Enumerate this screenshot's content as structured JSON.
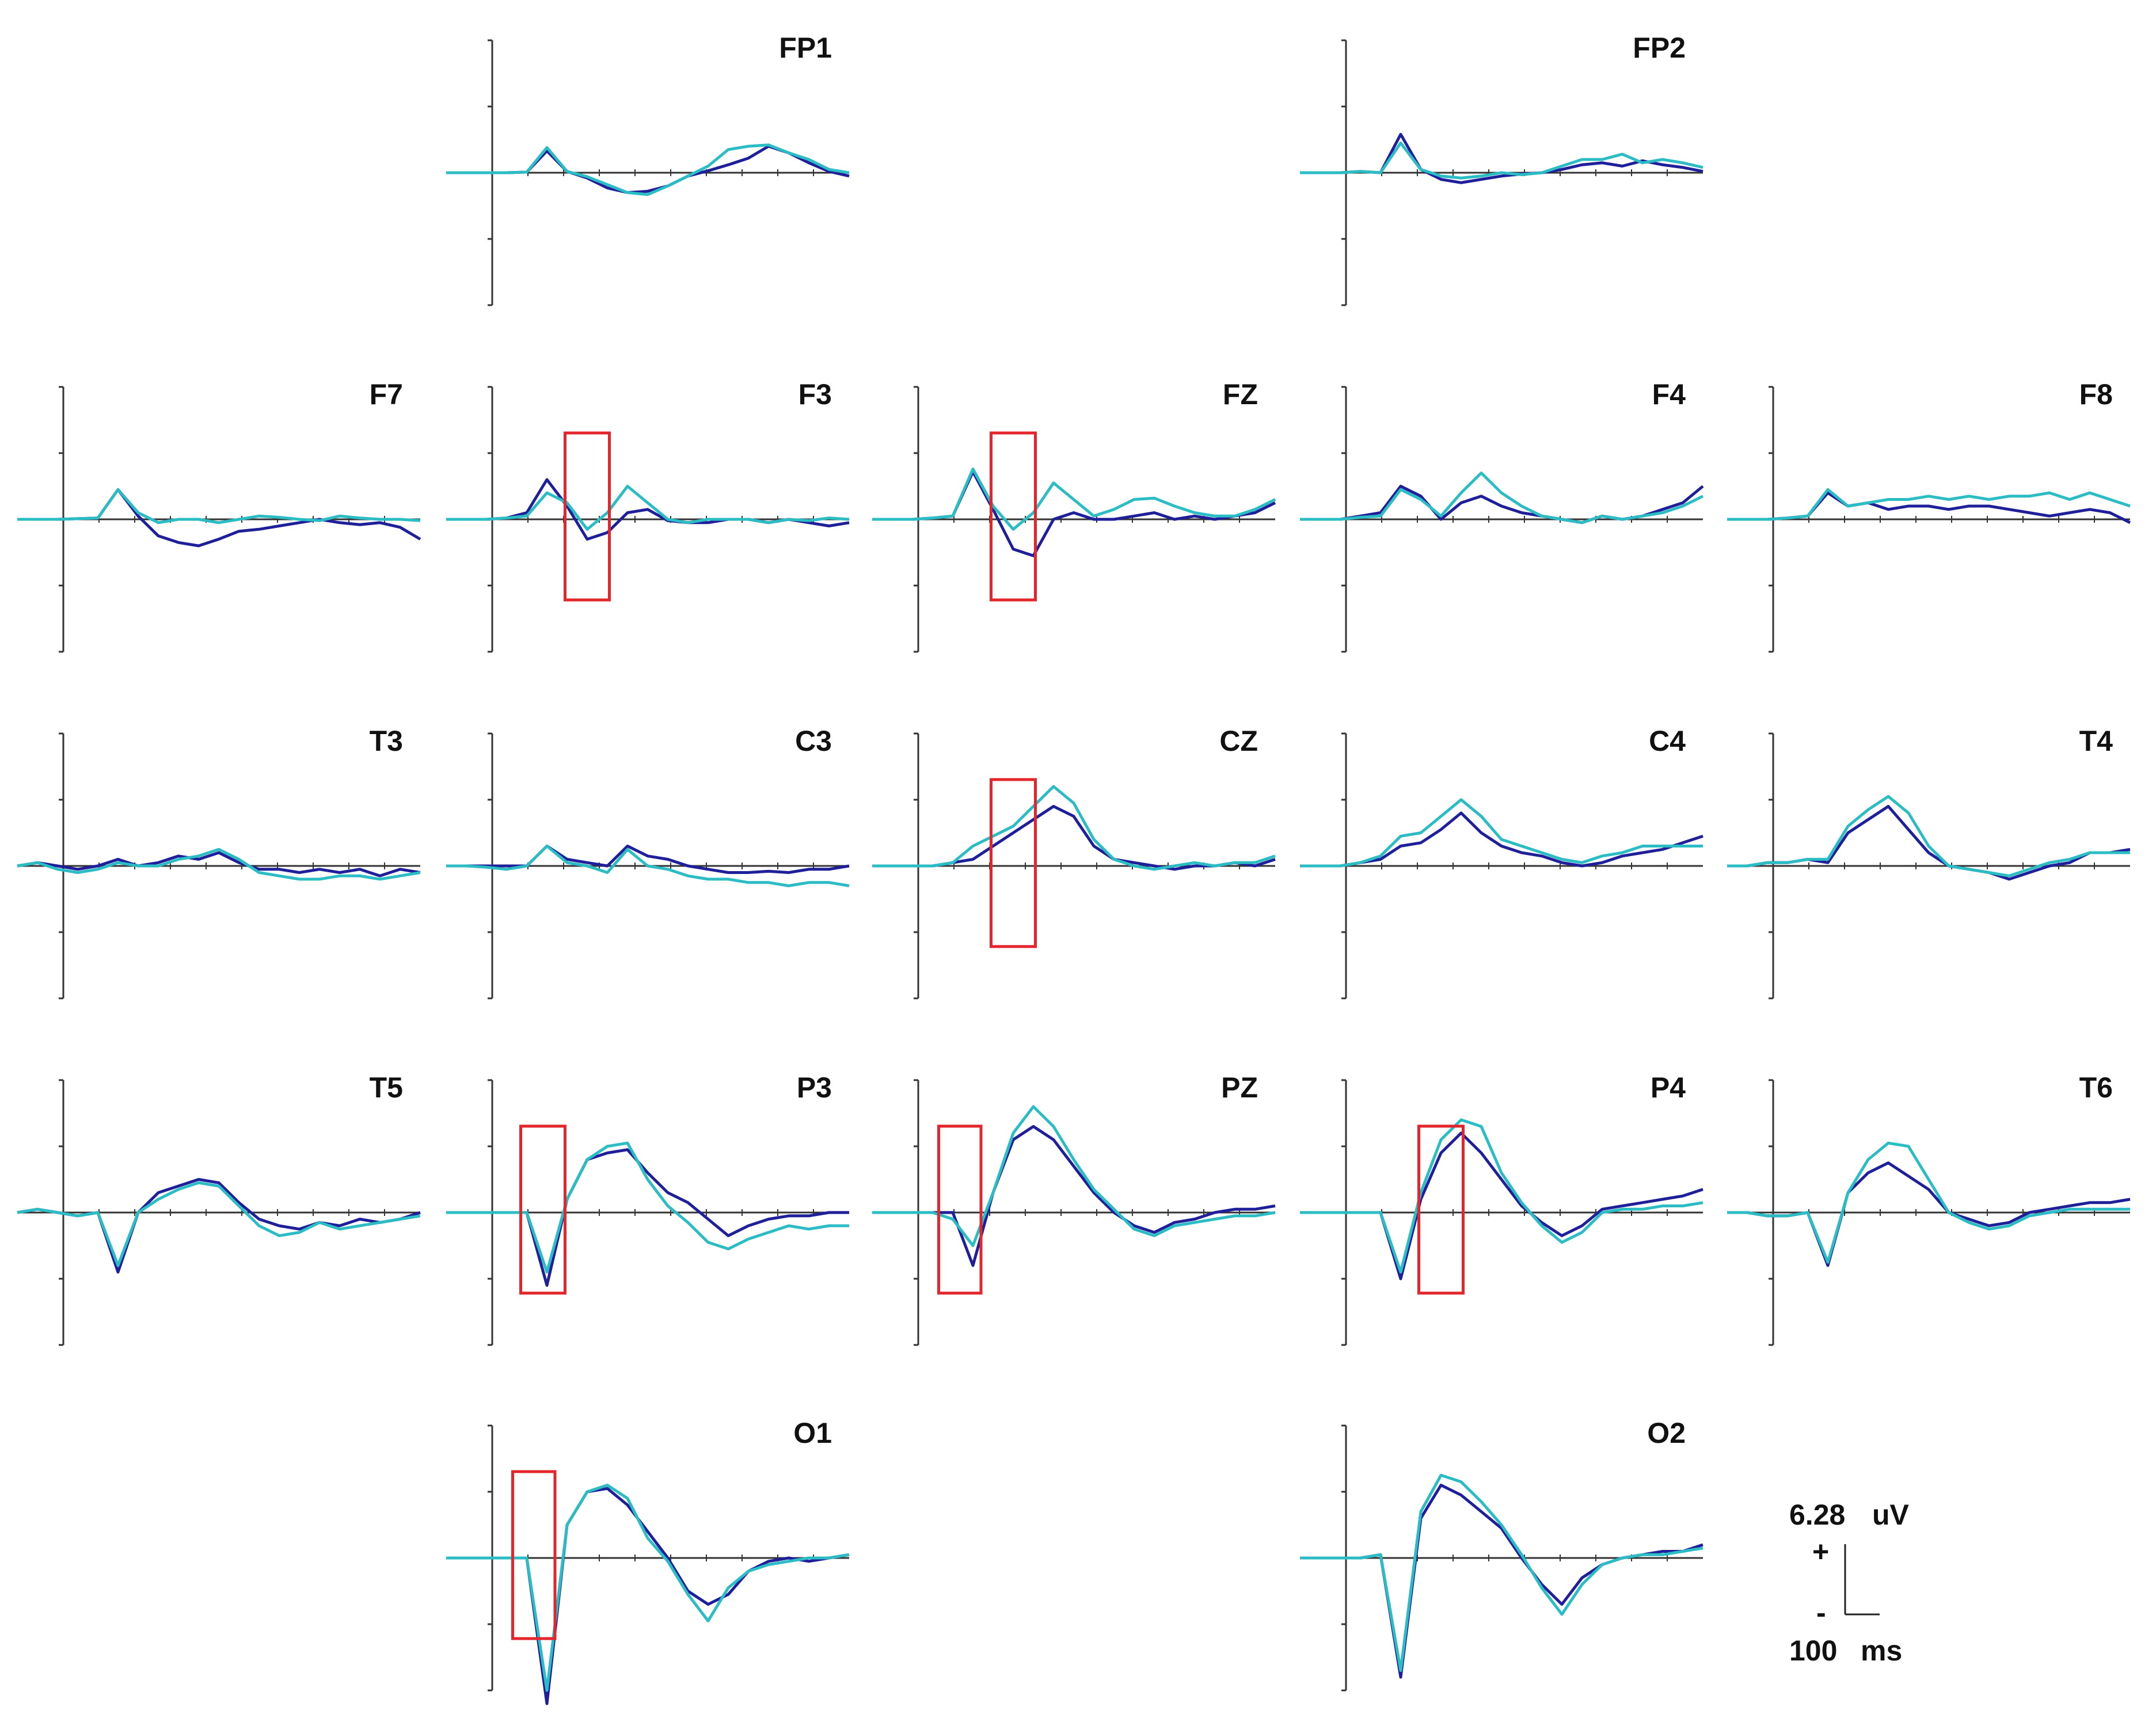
{
  "chart_data": {
    "type": "line",
    "axes": {
      "ticks_y_visible": true,
      "grid": false
    },
    "colors": {
      "series_a": "#1f1f9a",
      "series_b": "#2bbcc4",
      "highlight": "#e3262b"
    },
    "scale_bar": {
      "amplitude": "6.28",
      "amplitude_unit": "uV",
      "time": "100",
      "time_unit": "ms",
      "plus_label": "+",
      "minus_label": "-"
    },
    "channels": [
      {
        "name": "FP1",
        "a": [
          0,
          0,
          0,
          0,
          0.01,
          0.33,
          0.02,
          -0.08,
          -0.23,
          -0.3,
          -0.28,
          -0.2,
          -0.05,
          0.03,
          0.12,
          0.22,
          0.4,
          0.3,
          0.15,
          0.02,
          -0.05
        ],
        "b": [
          0,
          0,
          0,
          0,
          0.01,
          0.38,
          0.02,
          -0.06,
          -0.18,
          -0.3,
          -0.33,
          -0.2,
          -0.05,
          0.1,
          0.35,
          0.4,
          0.42,
          0.3,
          0.2,
          0.05,
          0
        ]
      },
      {
        "name": "FP2",
        "a": [
          0,
          0,
          0,
          0.02,
          0.0,
          0.58,
          0.05,
          -0.1,
          -0.15,
          -0.1,
          -0.05,
          -0.02,
          0.0,
          0.05,
          0.12,
          0.15,
          0.1,
          0.18,
          0.12,
          0.08,
          0.02
        ],
        "b": [
          0,
          0,
          0,
          0.02,
          0.0,
          0.45,
          0.05,
          -0.05,
          -0.08,
          -0.05,
          0.0,
          -0.03,
          0.0,
          0.1,
          0.2,
          0.2,
          0.28,
          0.15,
          0.2,
          0.15,
          0.08
        ]
      },
      {
        "name": "F7",
        "a": [
          0,
          0,
          0,
          0.01,
          0.02,
          0.45,
          0.05,
          -0.25,
          -0.35,
          -0.4,
          -0.3,
          -0.18,
          -0.15,
          -0.1,
          -0.05,
          0.0,
          -0.05,
          -0.08,
          -0.05,
          -0.12,
          -0.3
        ],
        "b": [
          0,
          0,
          0,
          0.01,
          0.02,
          0.45,
          0.1,
          -0.05,
          0.0,
          0.0,
          -0.05,
          0.0,
          0.05,
          0.03,
          0.0,
          -0.02,
          0.05,
          0.02,
          0.0,
          0.0,
          -0.02
        ]
      },
      {
        "name": "F3",
        "a": [
          0,
          0,
          0,
          0.02,
          0.1,
          0.6,
          0.2,
          -0.3,
          -0.2,
          0.1,
          0.15,
          -0.02,
          -0.05,
          -0.05,
          0.0,
          0.0,
          -0.05,
          0.0,
          -0.05,
          -0.1,
          -0.05
        ],
        "b": [
          0,
          0,
          0,
          0.02,
          0.05,
          0.4,
          0.25,
          -0.15,
          0.1,
          0.5,
          0.25,
          0.0,
          -0.05,
          0.0,
          0.0,
          0.0,
          -0.05,
          0.0,
          -0.02,
          0.02,
          0.0
        ]
      },
      {
        "name": "FZ",
        "a": [
          0,
          0,
          0,
          0.02,
          0.05,
          0.72,
          0.15,
          -0.45,
          -0.55,
          0.0,
          0.1,
          0.0,
          0.0,
          0.05,
          0.1,
          0.0,
          0.05,
          0.0,
          0.05,
          0.1,
          0.25
        ],
        "b": [
          0,
          0,
          0,
          0.02,
          0.05,
          0.76,
          0.2,
          -0.15,
          0.1,
          0.55,
          0.3,
          0.05,
          0.15,
          0.3,
          0.32,
          0.2,
          0.1,
          0.05,
          0.05,
          0.15,
          0.3
        ]
      },
      {
        "name": "F4",
        "a": [
          0,
          0,
          0,
          0.05,
          0.1,
          0.5,
          0.35,
          0.0,
          0.25,
          0.35,
          0.2,
          0.1,
          0.05,
          0.0,
          -0.05,
          0.05,
          0.0,
          0.05,
          0.15,
          0.25,
          0.5
        ],
        "b": [
          0,
          0,
          0,
          0.03,
          0.05,
          0.45,
          0.3,
          0.05,
          0.4,
          0.7,
          0.4,
          0.2,
          0.05,
          0.0,
          -0.05,
          0.05,
          0.0,
          0.05,
          0.1,
          0.2,
          0.35
        ]
      },
      {
        "name": "F8",
        "a": [
          0,
          0,
          0,
          0.02,
          0.05,
          0.4,
          0.2,
          0.25,
          0.15,
          0.2,
          0.2,
          0.15,
          0.2,
          0.2,
          0.15,
          0.1,
          0.05,
          0.1,
          0.15,
          0.1,
          -0.05
        ],
        "b": [
          0,
          0,
          0,
          0.02,
          0.05,
          0.45,
          0.2,
          0.25,
          0.3,
          0.3,
          0.35,
          0.3,
          0.35,
          0.3,
          0.35,
          0.35,
          0.4,
          0.3,
          0.4,
          0.3,
          0.2
        ]
      },
      {
        "name": "T3",
        "a": [
          0,
          0.05,
          0.0,
          -0.05,
          0.0,
          0.1,
          0.0,
          0.05,
          0.15,
          0.1,
          0.2,
          0.05,
          -0.05,
          -0.05,
          -0.1,
          -0.05,
          -0.1,
          -0.05,
          -0.15,
          -0.05,
          -0.1
        ],
        "b": [
          0,
          0.05,
          -0.05,
          -0.1,
          -0.05,
          0.05,
          0.0,
          0.0,
          0.1,
          0.15,
          0.25,
          0.1,
          -0.1,
          -0.15,
          -0.2,
          -0.2,
          -0.15,
          -0.15,
          -0.2,
          -0.15,
          -0.1
        ]
      },
      {
        "name": "C3",
        "a": [
          0,
          0,
          0,
          0.0,
          0.0,
          0.3,
          0.1,
          0.05,
          0.0,
          0.3,
          0.15,
          0.1,
          0.0,
          -0.05,
          -0.1,
          -0.1,
          -0.08,
          -0.1,
          -0.05,
          -0.05,
          0.0
        ],
        "b": [
          0,
          0,
          -0.02,
          -0.05,
          0.0,
          0.3,
          0.05,
          0.0,
          -0.1,
          0.25,
          0.0,
          -0.05,
          -0.15,
          -0.2,
          -0.2,
          -0.25,
          -0.25,
          -0.3,
          -0.25,
          -0.25,
          -0.3
        ]
      },
      {
        "name": "CZ",
        "a": [
          0,
          0,
          0,
          0.0,
          0.05,
          0.1,
          0.3,
          0.5,
          0.7,
          0.9,
          0.75,
          0.3,
          0.1,
          0.05,
          0.0,
          -0.05,
          0.0,
          0.0,
          0.05,
          0.0,
          0.1
        ],
        "b": [
          0,
          0,
          0,
          0.0,
          0.05,
          0.3,
          0.45,
          0.6,
          0.9,
          1.2,
          0.95,
          0.4,
          0.1,
          0.0,
          -0.05,
          0.0,
          0.05,
          0.0,
          0.05,
          0.05,
          0.15
        ]
      },
      {
        "name": "C4",
        "a": [
          0,
          0,
          0,
          0.05,
          0.1,
          0.3,
          0.35,
          0.55,
          0.8,
          0.5,
          0.3,
          0.2,
          0.15,
          0.05,
          0.0,
          0.05,
          0.15,
          0.2,
          0.25,
          0.35,
          0.45
        ],
        "b": [
          0,
          0,
          0,
          0.05,
          0.15,
          0.45,
          0.5,
          0.75,
          1.0,
          0.75,
          0.4,
          0.3,
          0.2,
          0.1,
          0.05,
          0.15,
          0.2,
          0.3,
          0.3,
          0.3,
          0.3
        ]
      },
      {
        "name": "T4",
        "a": [
          0,
          0,
          0.05,
          0.05,
          0.1,
          0.05,
          0.5,
          0.7,
          0.9,
          0.55,
          0.2,
          0.0,
          -0.05,
          -0.1,
          -0.2,
          -0.1,
          0.0,
          0.05,
          0.2,
          0.2,
          0.25
        ],
        "b": [
          0,
          0,
          0.05,
          0.05,
          0.1,
          0.1,
          0.6,
          0.85,
          1.05,
          0.8,
          0.3,
          0.0,
          -0.05,
          -0.1,
          -0.15,
          -0.05,
          0.05,
          0.1,
          0.2,
          0.2,
          0.2
        ]
      },
      {
        "name": "T5",
        "a": [
          0,
          0.05,
          0.0,
          -0.05,
          0.0,
          -0.9,
          0.0,
          0.3,
          0.4,
          0.5,
          0.45,
          0.15,
          -0.1,
          -0.2,
          -0.25,
          -0.15,
          -0.2,
          -0.1,
          -0.15,
          -0.1,
          0.0
        ],
        "b": [
          0,
          0.05,
          0.0,
          -0.05,
          0.0,
          -0.8,
          0.0,
          0.2,
          0.35,
          0.45,
          0.4,
          0.1,
          -0.2,
          -0.35,
          -0.3,
          -0.15,
          -0.25,
          -0.2,
          -0.15,
          -0.1,
          -0.05
        ]
      },
      {
        "name": "P3",
        "a": [
          0,
          0,
          0,
          0.0,
          0.0,
          -1.1,
          0.2,
          0.8,
          0.9,
          0.95,
          0.6,
          0.3,
          0.15,
          -0.1,
          -0.35,
          -0.2,
          -0.1,
          -0.05,
          -0.05,
          0.0,
          0.0
        ],
        "b": [
          0,
          0,
          0,
          0.0,
          0.0,
          -0.9,
          0.2,
          0.8,
          1.0,
          1.05,
          0.5,
          0.1,
          -0.15,
          -0.45,
          -0.55,
          -0.4,
          -0.3,
          -0.2,
          -0.25,
          -0.2,
          -0.2
        ]
      },
      {
        "name": "PZ",
        "a": [
          0,
          0,
          0,
          0.0,
          0.0,
          -0.8,
          0.3,
          1.1,
          1.3,
          1.1,
          0.7,
          0.3,
          0.0,
          -0.2,
          -0.3,
          -0.15,
          -0.1,
          0.0,
          0.05,
          0.05,
          0.1
        ],
        "b": [
          0,
          0,
          0,
          0.0,
          -0.1,
          -0.5,
          0.3,
          1.2,
          1.6,
          1.3,
          0.8,
          0.35,
          0.05,
          -0.25,
          -0.35,
          -0.2,
          -0.15,
          -0.1,
          -0.05,
          -0.05,
          0.0
        ]
      },
      {
        "name": "P4",
        "a": [
          0,
          0,
          0,
          0.0,
          0.0,
          -1.0,
          0.2,
          0.9,
          1.2,
          0.9,
          0.5,
          0.1,
          -0.15,
          -0.35,
          -0.2,
          0.05,
          0.1,
          0.15,
          0.2,
          0.25,
          0.35
        ],
        "b": [
          0,
          0,
          0,
          0.0,
          0.0,
          -0.9,
          0.3,
          1.1,
          1.4,
          1.3,
          0.6,
          0.15,
          -0.2,
          -0.45,
          -0.3,
          0.0,
          0.05,
          0.05,
          0.1,
          0.1,
          0.15
        ]
      },
      {
        "name": "T6",
        "a": [
          0,
          0,
          -0.05,
          -0.05,
          0.0,
          -0.8,
          0.3,
          0.6,
          0.75,
          0.55,
          0.35,
          0.0,
          -0.1,
          -0.2,
          -0.15,
          0.0,
          0.05,
          0.1,
          0.15,
          0.15,
          0.2
        ],
        "b": [
          0,
          0,
          -0.05,
          -0.05,
          0.0,
          -0.75,
          0.3,
          0.8,
          1.05,
          1.0,
          0.5,
          0.0,
          -0.15,
          -0.25,
          -0.2,
          -0.05,
          0.0,
          0.05,
          0.05,
          0.05,
          0.05
        ]
      },
      {
        "name": "O1",
        "a": [
          0,
          0,
          0,
          0.0,
          0.0,
          -2.2,
          0.5,
          1.0,
          1.05,
          0.8,
          0.4,
          0.0,
          -0.5,
          -0.7,
          -0.55,
          -0.2,
          -0.05,
          0.0,
          -0.05,
          0.0,
          0.05
        ],
        "b": [
          0,
          0,
          0,
          0.0,
          0.0,
          -2.0,
          0.5,
          1.0,
          1.1,
          0.9,
          0.3,
          -0.05,
          -0.55,
          -0.95,
          -0.45,
          -0.2,
          -0.1,
          -0.05,
          0.0,
          0.0,
          0.05
        ]
      },
      {
        "name": "O2",
        "a": [
          0,
          0,
          0,
          0.0,
          0.05,
          -1.8,
          0.6,
          1.1,
          0.95,
          0.7,
          0.45,
          0.0,
          -0.4,
          -0.7,
          -0.3,
          -0.1,
          0.0,
          0.05,
          0.1,
          0.1,
          0.2
        ],
        "b": [
          0,
          0,
          0,
          0.0,
          0.05,
          -1.7,
          0.7,
          1.25,
          1.15,
          0.85,
          0.5,
          0.05,
          -0.45,
          -0.85,
          -0.4,
          -0.1,
          0.0,
          0.05,
          0.05,
          0.1,
          0.15
        ]
      }
    ]
  }
}
